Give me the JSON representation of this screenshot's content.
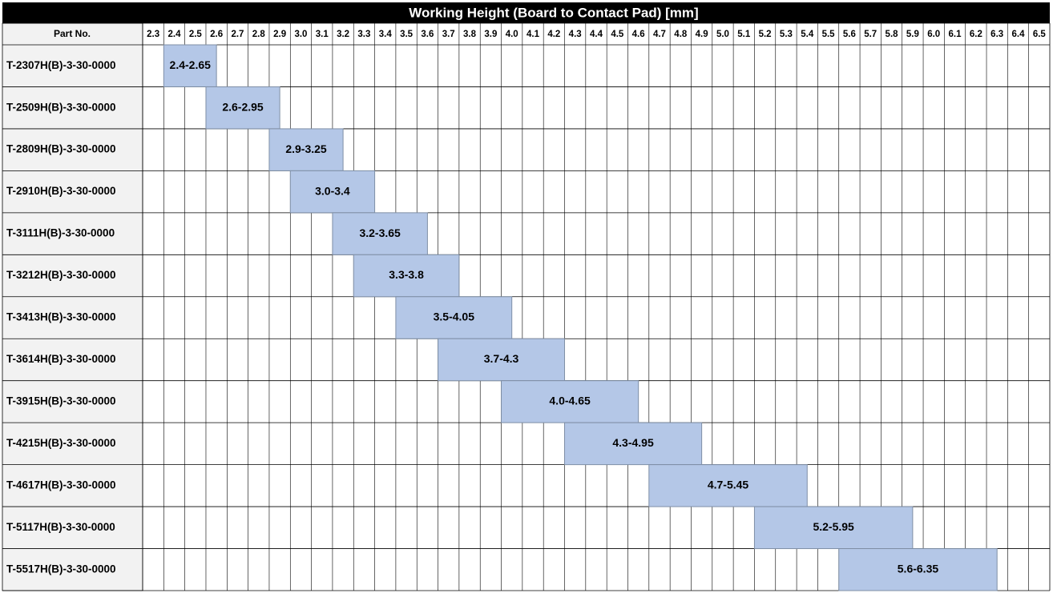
{
  "chart_data": {
    "type": "range",
    "title": "Working Height (Board to Contact Pad) [mm]",
    "category_header": "Part No.",
    "categories": [
      "T-2307H(B)-3-30-0000",
      "T-2509H(B)-3-30-0000",
      "T-2809H(B)-3-30-0000",
      "T-2910H(B)-3-30-0000",
      "T-3111H(B)-3-30-0000",
      "T-3212H(B)-3-30-0000",
      "T-3413H(B)-3-30-0000",
      "T-3614H(B)-3-30-0000",
      "T-3915H(B)-3-30-0000",
      "T-4215H(B)-3-30-0000",
      "T-4617H(B)-3-30-0000",
      "T-5117H(B)-3-30-0000",
      "T-5517H(B)-3-30-0000"
    ],
    "series": [
      {
        "color": "#b4c7e7",
        "low": [
          2.4,
          2.6,
          2.9,
          3.0,
          3.2,
          3.3,
          3.5,
          3.7,
          4.0,
          4.3,
          4.7,
          5.2,
          5.6
        ],
        "high": [
          2.65,
          2.95,
          3.25,
          3.4,
          3.65,
          3.8,
          4.05,
          4.3,
          4.65,
          4.95,
          5.45,
          5.95,
          6.35
        ],
        "value_labels": [
          "2.4-2.65",
          "2.6-2.95",
          "2.9-3.25",
          "3.0-3.4",
          "3.2-3.65",
          "3.3-3.8",
          "3.5-4.05",
          "3.7-4.3",
          "4.0-4.65",
          "4.3-4.95",
          "4.7-5.45",
          "5.2-5.95",
          "5.6-6.35"
        ]
      }
    ],
    "xlim": [
      2.3,
      6.6
    ],
    "xticks": [
      2.3,
      2.4,
      2.5,
      2.6,
      2.7,
      2.8,
      2.9,
      {
        "value": 3,
        "label": "3.0"
      },
      3.1,
      3.2,
      3.3,
      3.4,
      3.5,
      3.6,
      3.7,
      3.8,
      3.9,
      {
        "value": 4,
        "label": "4.0"
      },
      4.1,
      4.2,
      4.3,
      4.4,
      4.5,
      4.6,
      4.7,
      4.8,
      4.9,
      {
        "value": 5,
        "label": "5.0"
      },
      5.1,
      5.2,
      5.3,
      5.4,
      5.5,
      5.6,
      5.7,
      5.8,
      5.9,
      {
        "value": 6,
        "label": "6.0"
      },
      6.1,
      6.2,
      6.3,
      6.4,
      6.5
    ]
  }
}
